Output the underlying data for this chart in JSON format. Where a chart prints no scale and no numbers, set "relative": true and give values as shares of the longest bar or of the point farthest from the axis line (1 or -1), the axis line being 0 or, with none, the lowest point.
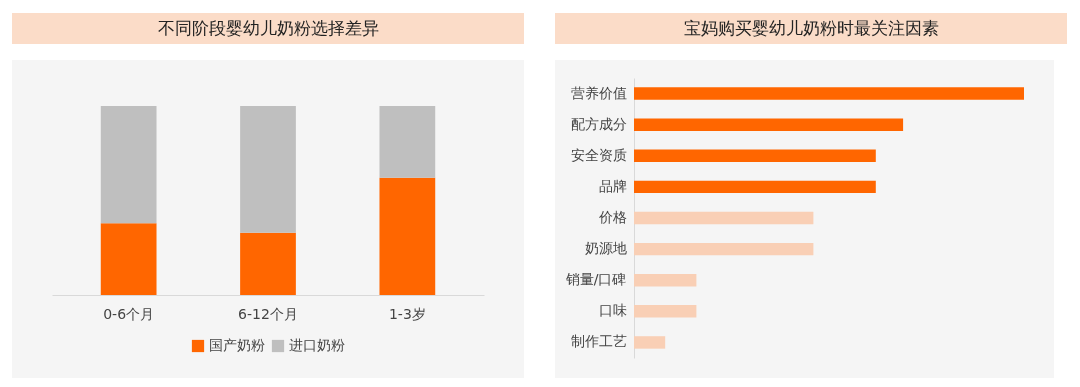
{
  "chart_data": [
    {
      "type": "bar",
      "title": "不同阶段婴幼儿奶粉选择差异",
      "categories": [
        "0-6个月",
        "6-12个月",
        "1-3岁"
      ],
      "stacked": true,
      "relative": true,
      "legend": "bottom",
      "series": [
        {
          "name": "国产奶粉",
          "color": "#ff6600",
          "values": [
            0.38,
            0.33,
            0.62
          ]
        },
        {
          "name": "进口奶粉",
          "color": "#bfbfbf",
          "values": [
            0.62,
            0.67,
            0.38
          ]
        }
      ]
    },
    {
      "type": "bar",
      "title": "宝妈购买婴幼儿奶粉时最关注因素",
      "orientation": "horizontal",
      "relative": true,
      "categories": [
        "营养价值",
        "配方成分",
        "安全资质",
        "品牌",
        "价格",
        "奶源地",
        "销量/口碑",
        "口味",
        "制作工艺"
      ],
      "values": [
        1,
        0.69,
        0.62,
        0.62,
        0.46,
        0.46,
        0.16,
        0.16,
        0.08
      ],
      "colors": [
        "#ff6600",
        "#ff6600",
        "#ff6600",
        "#ff6600",
        "#f9cfb5",
        "#f9cfb5",
        "#f9cfb5",
        "#f9cfb5",
        "#f9cfb5"
      ]
    }
  ]
}
